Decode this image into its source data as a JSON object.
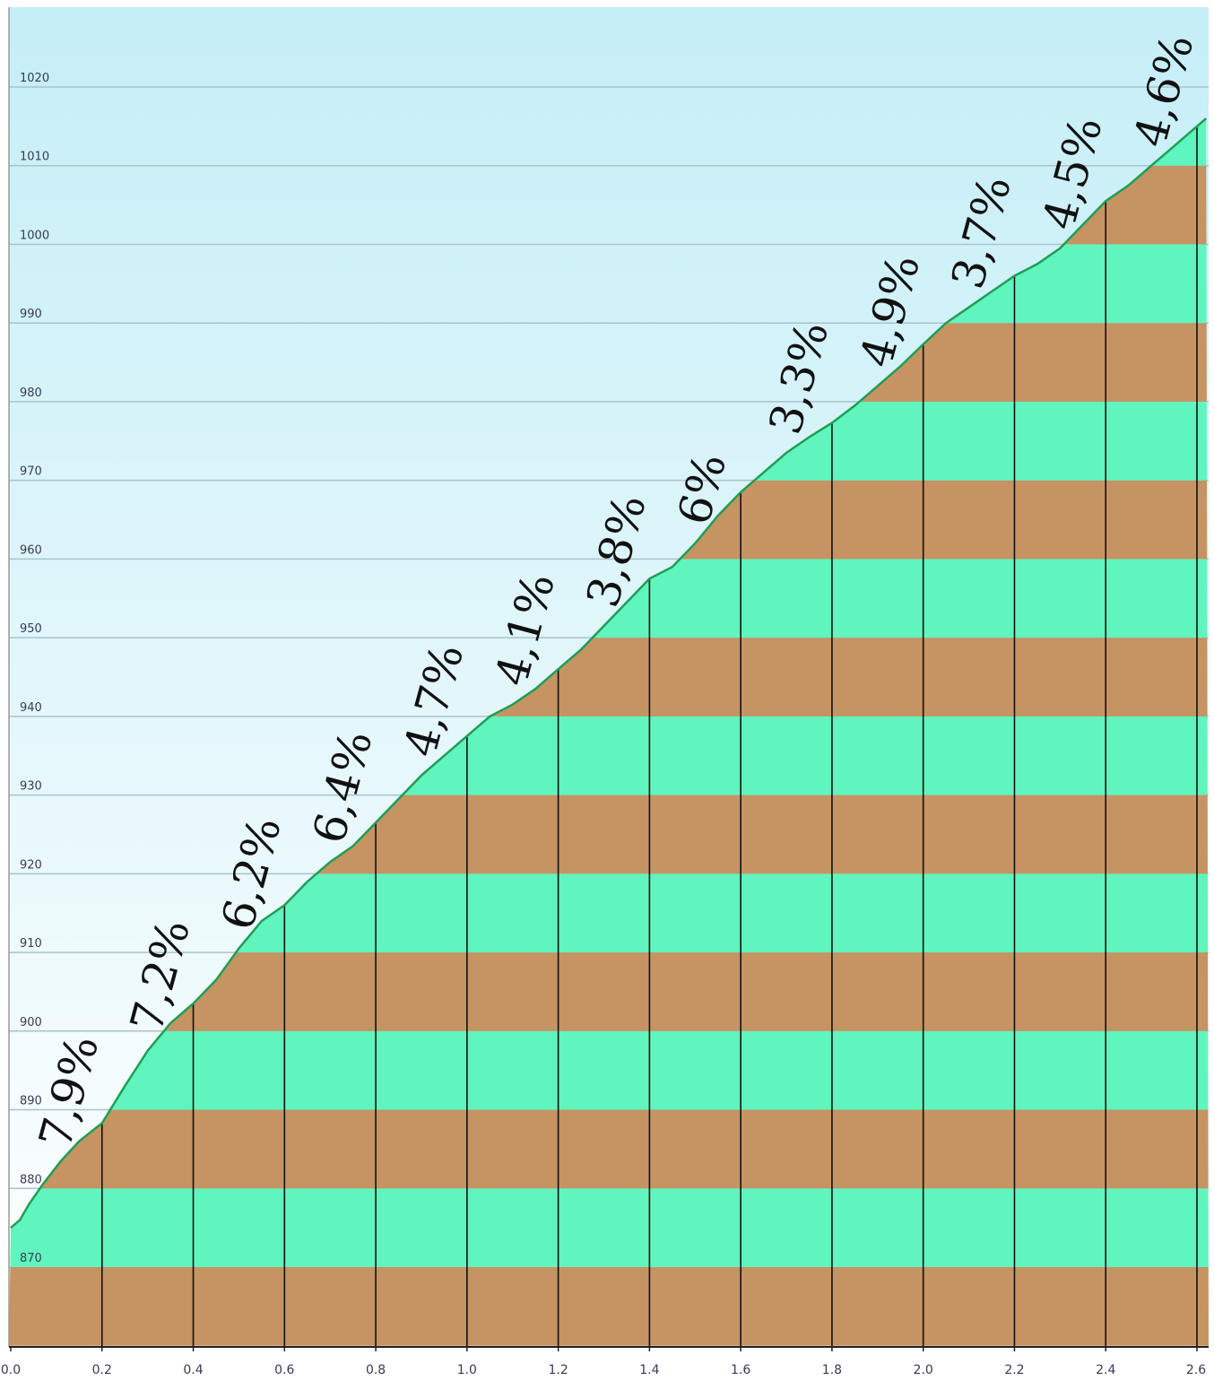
{
  "chart_data": {
    "type": "area",
    "title": "",
    "xlabel": "",
    "ylabel": "",
    "xlim": [
      0.0,
      2.6
    ],
    "ylim": [
      864,
      1030
    ],
    "x_ticks": [
      "0.0",
      "0.2",
      "0.4",
      "0.6",
      "0.8",
      "1.0",
      "1.2",
      "1.4",
      "1.6",
      "1.8",
      "2.0",
      "2.2",
      "2.4",
      "2.6"
    ],
    "y_ticks": [
      "870",
      "880",
      "890",
      "900",
      "910",
      "920",
      "930",
      "940",
      "950",
      "960",
      "970",
      "980",
      "990",
      "1000",
      "1010",
      "1020"
    ],
    "grid": true,
    "band_size": 10,
    "profile": {
      "x": [
        0.0,
        0.02,
        0.04,
        0.07,
        0.11,
        0.15,
        0.2,
        0.25,
        0.3,
        0.35,
        0.4,
        0.45,
        0.5,
        0.55,
        0.6,
        0.65,
        0.7,
        0.75,
        0.8,
        0.85,
        0.9,
        0.95,
        1.0,
        1.05,
        1.1,
        1.15,
        1.2,
        1.25,
        1.3,
        1.35,
        1.4,
        1.45,
        1.5,
        1.55,
        1.6,
        1.65,
        1.7,
        1.75,
        1.8,
        1.85,
        1.9,
        1.95,
        2.0,
        2.05,
        2.1,
        2.15,
        2.2,
        2.25,
        2.3,
        2.35,
        2.4,
        2.45,
        2.5,
        2.55,
        2.6,
        2.62
      ],
      "y": [
        875.0,
        876.0,
        878.0,
        880.5,
        883.5,
        886.0,
        888.3,
        893.0,
        897.5,
        901.0,
        903.5,
        906.5,
        910.5,
        914.0,
        916.0,
        919.0,
        921.5,
        923.5,
        926.5,
        929.5,
        932.5,
        935.0,
        937.5,
        940.0,
        941.5,
        943.5,
        946.0,
        948.5,
        951.5,
        954.5,
        957.5,
        959.0,
        962.0,
        965.5,
        968.5,
        971.0,
        973.5,
        975.5,
        977.3,
        979.5,
        982.0,
        984.5,
        987.3,
        990.0,
        992.0,
        994.0,
        996.0,
        997.5,
        999.5,
        1002.5,
        1005.5,
        1007.5,
        1010.0,
        1012.5,
        1015.0,
        1016.0
      ]
    },
    "km_marks": [
      0.2,
      0.4,
      0.6,
      0.8,
      1.0,
      1.2,
      1.4,
      1.6,
      1.8,
      2.0,
      2.2,
      2.4,
      2.6
    ],
    "gradients": [
      {
        "x": 0.1,
        "label": "7,9%"
      },
      {
        "x": 0.3,
        "label": "7,2%"
      },
      {
        "x": 0.5,
        "label": "6,2%"
      },
      {
        "x": 0.7,
        "label": "6,4%"
      },
      {
        "x": 0.9,
        "label": "4,7%"
      },
      {
        "x": 1.1,
        "label": "4,1%"
      },
      {
        "x": 1.3,
        "label": "3,8%"
      },
      {
        "x": 1.5,
        "label": "6%"
      },
      {
        "x": 1.7,
        "label": "3,3%"
      },
      {
        "x": 1.9,
        "label": "4,9%"
      },
      {
        "x": 2.1,
        "label": "3,7%"
      },
      {
        "x": 2.3,
        "label": "4,5%"
      },
      {
        "x": 2.5,
        "label": "4,6%"
      }
    ],
    "colors": {
      "sky_top": "#c5eef7",
      "sky_bottom": "#ffffff",
      "band_green": "#60f5be",
      "band_brown": "#c69363",
      "profile_line": "#1f9e54",
      "grid": "#a9c4c9",
      "km_line": "#111111"
    }
  }
}
